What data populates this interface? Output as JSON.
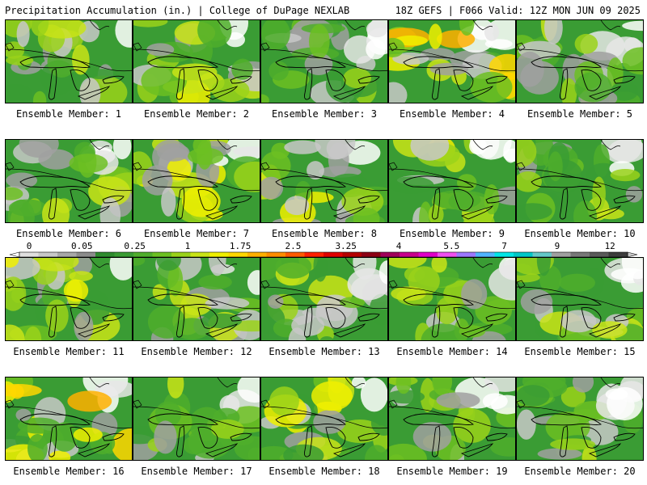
{
  "header": {
    "left": "Precipitation Accumulation (in.) | College of DuPage NEXLAB",
    "right": "18Z GEFS | F066 Valid: 12Z MON JUN 09 2025"
  },
  "members": [
    {
      "label": "Ensemble Member: 1",
      "wetness": 0.45
    },
    {
      "label": "Ensemble Member: 2",
      "wetness": 0.5
    },
    {
      "label": "Ensemble Member: 3",
      "wetness": 0.4
    },
    {
      "label": "Ensemble Member: 4",
      "wetness": 0.75
    },
    {
      "label": "Ensemble Member: 5",
      "wetness": 0.5
    },
    {
      "label": "Ensemble Member: 6",
      "wetness": 0.45
    },
    {
      "label": "Ensemble Member: 7",
      "wetness": 0.55
    },
    {
      "label": "Ensemble Member: 8",
      "wetness": 0.5
    },
    {
      "label": "Ensemble Member: 9",
      "wetness": 0.5
    },
    {
      "label": "Ensemble Member: 10",
      "wetness": 0.45
    },
    {
      "label": "Ensemble Member: 11",
      "wetness": 0.55
    },
    {
      "label": "Ensemble Member: 12",
      "wetness": 0.45
    },
    {
      "label": "Ensemble Member: 13",
      "wetness": 0.4
    },
    {
      "label": "Ensemble Member: 14",
      "wetness": 0.5
    },
    {
      "label": "Ensemble Member: 15",
      "wetness": 0.5
    },
    {
      "label": "Ensemble Member: 16",
      "wetness": 0.65
    },
    {
      "label": "Ensemble Member: 17",
      "wetness": 0.45
    },
    {
      "label": "Ensemble Member: 18",
      "wetness": 0.55
    },
    {
      "label": "Ensemble Member: 19",
      "wetness": 0.4
    },
    {
      "label": "Ensemble Member: 20",
      "wetness": 0.45
    }
  ],
  "colorbar": {
    "tick_labels": [
      "0",
      "0.05",
      "0.25",
      "1",
      "1.75",
      "2.5",
      "3.25",
      "4",
      "5.5",
      "7",
      "9",
      "12"
    ],
    "colors": [
      "#e0e0e0",
      "#c8c8c8",
      "#a8a8a8",
      "#8c8c8c",
      "#2e8b2e",
      "#3a9c34",
      "#4fae2c",
      "#6cc022",
      "#9ad21a",
      "#c9e417",
      "#f0f000",
      "#ffd700",
      "#ffb000",
      "#ff8c00",
      "#ff5a00",
      "#ff2000",
      "#e00000",
      "#b40000",
      "#8c0014",
      "#a0005a",
      "#c8008c",
      "#e000c8",
      "#f050f0",
      "#9c78ff",
      "#50b4ff",
      "#00e6e6",
      "#00c8c8",
      "#64c8c8",
      "#a0a0a0",
      "#787878",
      "#5a5a5a",
      "#3c3c3c"
    ]
  }
}
